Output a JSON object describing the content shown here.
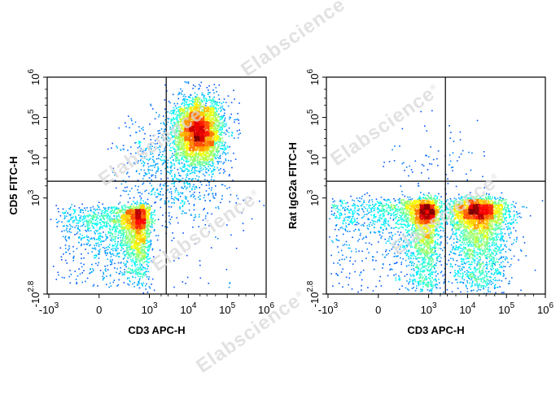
{
  "watermark": {
    "text": "Elabscience",
    "mark": "®"
  },
  "chart_data": [
    {
      "type": "scatter",
      "subtype": "flow-cytometry-density-dot-plot",
      "xlabel": "CD3 APC-H",
      "ylabel": "CD5 FITC-H",
      "x_scale": "biexponential",
      "y_scale": "biexponential",
      "x_ticks": [
        {
          "base": "-10",
          "exp": "3",
          "value": -1000
        },
        {
          "base": "0",
          "exp": "",
          "value": 0
        },
        {
          "base": "10",
          "exp": "3",
          "value": 1000
        },
        {
          "base": "10",
          "exp": "4",
          "value": 10000
        },
        {
          "base": "10",
          "exp": "5",
          "value": 100000
        },
        {
          "base": "10",
          "exp": "6",
          "value": 1000000
        }
      ],
      "y_ticks": [
        {
          "base": "-10",
          "exp": "2.8",
          "value": -631
        },
        {
          "base": "10",
          "exp": "3",
          "value": 1000
        },
        {
          "base": "10",
          "exp": "4",
          "value": 10000
        },
        {
          "base": "10",
          "exp": "5",
          "value": 100000
        },
        {
          "base": "10",
          "exp": "6",
          "value": 1000000
        }
      ],
      "gate": {
        "x": 2700,
        "y": 2600
      },
      "populations": [
        {
          "name_hidden": "CD3-CD5-",
          "x_center": 350,
          "y_center": 200,
          "x_spread": 0.3,
          "y_spread": 0.3,
          "count": 2600
        },
        {
          "name_hidden": "CD3+CD5+",
          "x_center": 18000,
          "y_center": 45000,
          "x_spread": 0.23,
          "y_spread": 0.3,
          "count": 3400
        },
        {
          "name_hidden": "bridge",
          "x_center": 2500,
          "y_center": 7000,
          "x_spread": 0.45,
          "y_spread": 0.45,
          "count": 550
        },
        {
          "name_hidden": "sparse CD3+CD5-",
          "x_center": 12000,
          "y_center": 700,
          "x_spread": 0.5,
          "y_spread": 0.4,
          "count": 180
        }
      ]
    },
    {
      "type": "scatter",
      "subtype": "flow-cytometry-density-dot-plot",
      "xlabel": "CD3 APC-H",
      "ylabel": "Rat IgG2a FITC-H",
      "x_scale": "biexponential",
      "y_scale": "biexponential",
      "x_ticks": [
        {
          "base": "-10",
          "exp": "3",
          "value": -1000
        },
        {
          "base": "0",
          "exp": "",
          "value": 0
        },
        {
          "base": "10",
          "exp": "3",
          "value": 1000
        },
        {
          "base": "10",
          "exp": "4",
          "value": 10000
        },
        {
          "base": "10",
          "exp": "5",
          "value": 100000
        },
        {
          "base": "10",
          "exp": "6",
          "value": 1000000
        }
      ],
      "y_ticks": [
        {
          "base": "-10",
          "exp": "2.8",
          "value": -631
        },
        {
          "base": "10",
          "exp": "3",
          "value": 1000
        },
        {
          "base": "10",
          "exp": "4",
          "value": 10000
        },
        {
          "base": "10",
          "exp": "5",
          "value": 100000
        },
        {
          "base": "10",
          "exp": "6",
          "value": 1000000
        }
      ],
      "gate": {
        "x": 2700,
        "y": 2600
      },
      "populations": [
        {
          "name_hidden": "CD3- isotype",
          "x_center": 600,
          "y_center": 300,
          "x_spread": 0.35,
          "y_spread": 0.3,
          "count": 2800
        },
        {
          "name_hidden": "CD3+ isotype",
          "x_center": 18000,
          "y_center": 300,
          "x_spread": 0.28,
          "y_spread": 0.3,
          "count": 3200
        },
        {
          "name_hidden": "sparse upper",
          "x_center": 1500,
          "y_center": 8000,
          "x_spread": 0.45,
          "y_spread": 0.35,
          "count": 80
        }
      ]
    }
  ]
}
